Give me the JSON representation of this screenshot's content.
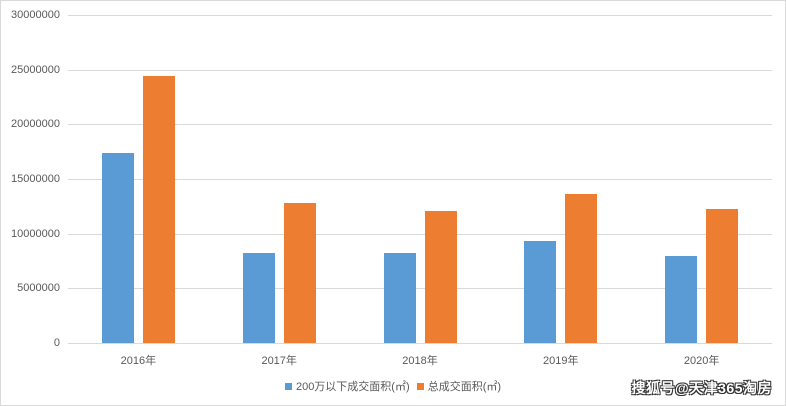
{
  "chart_data": {
    "type": "bar",
    "title": "",
    "xlabel": "",
    "ylabel": "",
    "categories": [
      "2016年",
      "2017年",
      "2018年",
      "2019年",
      "2020年"
    ],
    "series": [
      {
        "name": "200万以下成交面积(㎡)",
        "color": "#5b9bd5",
        "values": [
          17400000,
          8200000,
          8200000,
          9300000,
          8000000
        ]
      },
      {
        "name": "总成交面积(㎡)",
        "color": "#ed7d31",
        "values": [
          24400000,
          12800000,
          12100000,
          13600000,
          12300000
        ]
      }
    ],
    "ylim": [
      0,
      30000000
    ],
    "yticks": [
      "0",
      "5000000",
      "10000000",
      "15000000",
      "20000000",
      "25000000",
      "30000000"
    ],
    "grid": true,
    "legend_position": "bottom"
  },
  "legend": {
    "items": [
      {
        "label": "200万以下成交面积(㎡)",
        "color": "#5b9bd5"
      },
      {
        "label": "总成交面积(㎡)",
        "color": "#ed7d31"
      }
    ]
  },
  "watermark": "搜狐号@天津365淘房"
}
